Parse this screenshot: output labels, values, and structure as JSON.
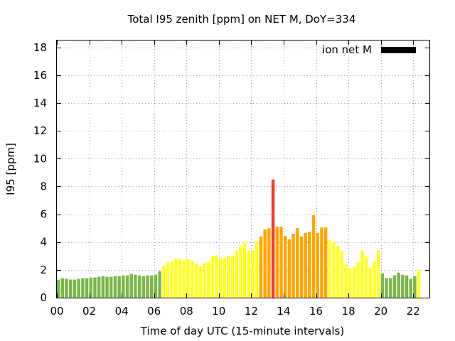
{
  "chart_data": {
    "type": "bar",
    "title": "Total I95 zenith [ppm] on NET M, DoY=334",
    "xlabel": "Time of day UTC (15-minute intervals)",
    "ylabel": "I95 [ppm]",
    "xlim": [
      0,
      23
    ],
    "ylim": [
      0,
      18.5
    ],
    "x_ticks": [
      {
        "value": 0,
        "label": "00"
      },
      {
        "value": 2,
        "label": "02"
      },
      {
        "value": 4,
        "label": "04"
      },
      {
        "value": 6,
        "label": "06"
      },
      {
        "value": 8,
        "label": "08"
      },
      {
        "value": 10,
        "label": "10"
      },
      {
        "value": 12,
        "label": "12"
      },
      {
        "value": 14,
        "label": "14"
      },
      {
        "value": 16,
        "label": "16"
      },
      {
        "value": 18,
        "label": "18"
      },
      {
        "value": 20,
        "label": "20"
      },
      {
        "value": 22,
        "label": "22"
      }
    ],
    "y_ticks": [
      {
        "value": 0,
        "label": "0"
      },
      {
        "value": 2,
        "label": "2"
      },
      {
        "value": 4,
        "label": "4"
      },
      {
        "value": 6,
        "label": "6"
      },
      {
        "value": 8,
        "label": "8"
      },
      {
        "value": 10,
        "label": "10"
      },
      {
        "value": 12,
        "label": "12"
      },
      {
        "value": 14,
        "label": "14"
      },
      {
        "value": 16,
        "label": "16"
      },
      {
        "value": 18,
        "label": "18"
      }
    ],
    "grid": true,
    "legend": {
      "label": "ion net M",
      "color": "#000000",
      "placement": "top-right"
    },
    "bar_interval_hours": 0.25,
    "colors": {
      "green": "#7ab648",
      "yellow": "#ffff22",
      "orange": "#ffa500",
      "red": "#f04030"
    },
    "series": [
      {
        "values": [
          1.3,
          1.4,
          1.35,
          1.3,
          1.3,
          1.35,
          1.4,
          1.4,
          1.45,
          1.45,
          1.5,
          1.55,
          1.5,
          1.5,
          1.55,
          1.55,
          1.6,
          1.6,
          1.7,
          1.65,
          1.6,
          1.55,
          1.6,
          1.6,
          1.65,
          1.9,
          2.3,
          2.55,
          2.6,
          2.8,
          2.8,
          2.7,
          2.75,
          2.65,
          2.45,
          2.25,
          2.5,
          2.6,
          3.0,
          3.05,
          2.85,
          2.85,
          3.0,
          3.0,
          3.4,
          3.7,
          4.0,
          3.4,
          3.4,
          4.0,
          4.4,
          4.9,
          5.0,
          8.5,
          5.1,
          5.1,
          4.45,
          4.2,
          4.6,
          5.0,
          4.4,
          4.65,
          4.75,
          5.95,
          4.65,
          5.05,
          5.05,
          4.15,
          4.0,
          3.7,
          3.35,
          2.4,
          2.1,
          2.2,
          2.55,
          3.4,
          2.95,
          2.15,
          2.65,
          3.4,
          1.75,
          1.4,
          1.4,
          1.6,
          1.8,
          1.65,
          1.6,
          1.35,
          1.55,
          2.0
        ],
        "colors": [
          "green",
          "green",
          "green",
          "green",
          "green",
          "green",
          "green",
          "green",
          "green",
          "green",
          "green",
          "green",
          "green",
          "green",
          "green",
          "green",
          "green",
          "green",
          "green",
          "green",
          "green",
          "green",
          "green",
          "green",
          "green",
          "green",
          "yellow",
          "yellow",
          "yellow",
          "yellow",
          "yellow",
          "yellow",
          "yellow",
          "yellow",
          "yellow",
          "yellow",
          "yellow",
          "yellow",
          "yellow",
          "yellow",
          "yellow",
          "yellow",
          "yellow",
          "yellow",
          "yellow",
          "yellow",
          "yellow",
          "yellow",
          "yellow",
          "yellow",
          "orange",
          "orange",
          "orange",
          "red",
          "orange",
          "orange",
          "orange",
          "orange",
          "orange",
          "orange",
          "orange",
          "orange",
          "orange",
          "orange",
          "orange",
          "orange",
          "orange",
          "yellow",
          "yellow",
          "yellow",
          "yellow",
          "yellow",
          "yellow",
          "yellow",
          "yellow",
          "yellow",
          "yellow",
          "yellow",
          "yellow",
          "yellow",
          "green",
          "green",
          "green",
          "green",
          "green",
          "green",
          "green",
          "green",
          "green",
          "yellow"
        ]
      }
    ]
  }
}
